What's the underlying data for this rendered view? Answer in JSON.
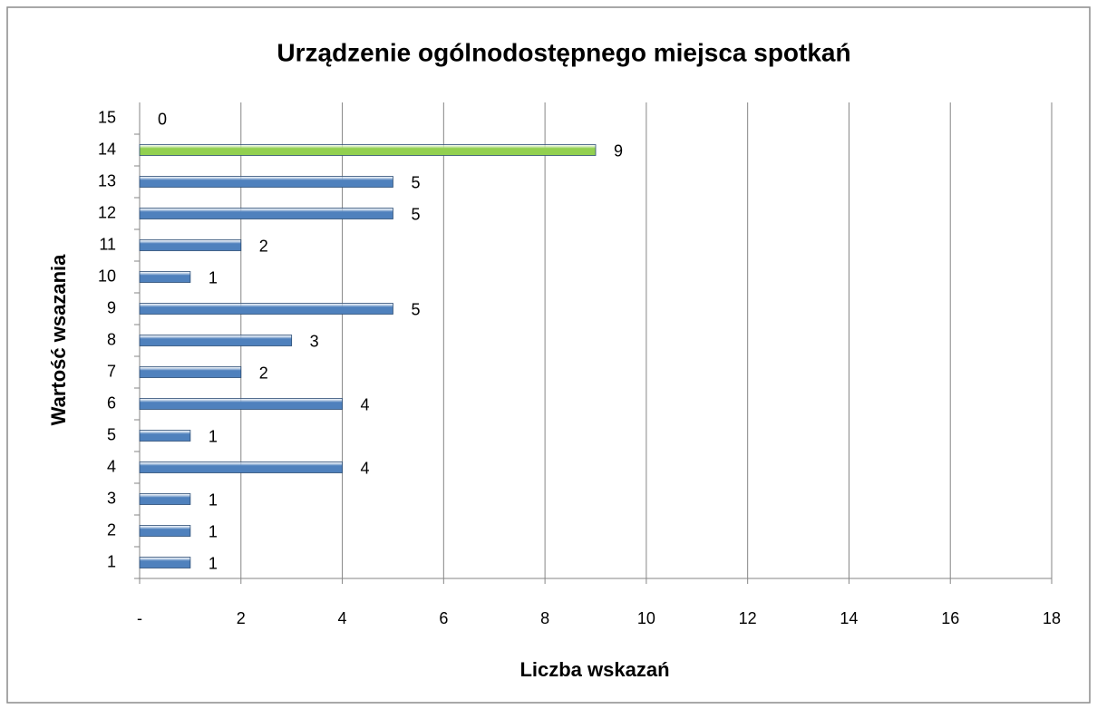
{
  "chart_data": {
    "type": "barh",
    "title": "Urządzenie ogólnodostępnego miejsca spotkań",
    "x_label": "Liczba wskazań",
    "y_label": "Wartość wsazania",
    "categories": [
      "1",
      "2",
      "3",
      "4",
      "5",
      "6",
      "7",
      "8",
      "9",
      "10",
      "11",
      "12",
      "13",
      "14",
      "15"
    ],
    "values": [
      1,
      1,
      1,
      4,
      1,
      4,
      2,
      3,
      5,
      1,
      2,
      5,
      5,
      9,
      0
    ],
    "colors": [
      "#4f81bd",
      "#4f81bd",
      "#4f81bd",
      "#4f81bd",
      "#4f81bd",
      "#4f81bd",
      "#4f81bd",
      "#4f81bd",
      "#4f81bd",
      "#4f81bd",
      "#4f81bd",
      "#4f81bd",
      "#4f81bd",
      "#92d050",
      "#4f81bd"
    ],
    "xlim": [
      0,
      18
    ],
    "xticks": [
      {
        "value": 0,
        "label": "-"
      },
      2,
      4,
      6,
      8,
      10,
      12,
      14,
      16,
      18
    ],
    "grid": true
  }
}
